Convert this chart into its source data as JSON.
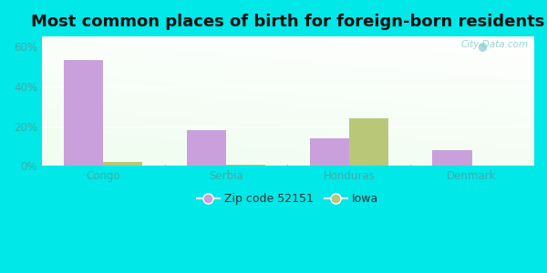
{
  "title": "Most common places of birth for foreign-born residents",
  "categories": [
    "Congo",
    "Serbia",
    "Honduras",
    "Denmark"
  ],
  "zip_values": [
    53,
    18,
    14,
    8
  ],
  "iowa_values": [
    2,
    0.5,
    24,
    0
  ],
  "zip_color": "#c9a0dc",
  "iowa_color": "#b8c878",
  "zip_label": "Zip code 52151",
  "iowa_label": "Iowa",
  "yticks": [
    0,
    20,
    40,
    60
  ],
  "ytick_labels": [
    "0%",
    "20%",
    "40%",
    "60%"
  ],
  "ylim": [
    0,
    65
  ],
  "bg_color": "#00e8e8",
  "watermark": "City-Data.com",
  "title_fontsize": 13,
  "tick_fontsize": 8.5,
  "legend_fontsize": 9,
  "bar_width": 0.32
}
